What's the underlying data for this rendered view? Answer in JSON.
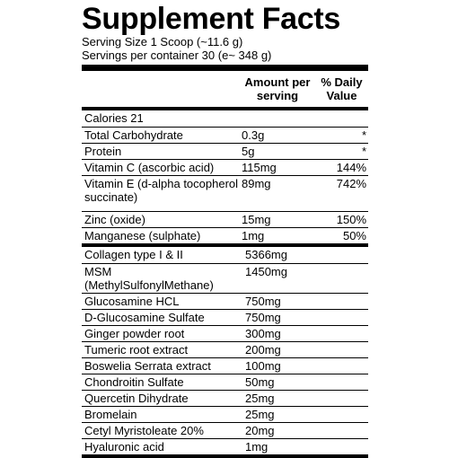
{
  "title": "Supplement Facts",
  "serving_size": "Serving Size 1 Scoop (~11.6 g)",
  "servings_per_container": "Servings per container 30 (e~ 348 g)",
  "headers": {
    "amount": "Amount per serving",
    "daily_value": "% Daily Value"
  },
  "calories": "Calories 21",
  "nutrients": [
    {
      "name": "Total Carbohydrate",
      "amount": "0.3g",
      "dv": "*"
    },
    {
      "name": "Protein",
      "amount": "5g",
      "dv": "*"
    },
    {
      "name": "Vitamin C (ascorbic acid)",
      "amount": "115mg",
      "dv": "144%"
    },
    {
      "name": "Vitamin E (d-alpha tocopherol succinate)",
      "amount": "89mg",
      "dv": "742%"
    },
    {
      "name": "Zinc (oxide)",
      "amount": "15mg",
      "dv": "150%"
    },
    {
      "name": "Manganese (sulphate)",
      "amount": "1mg",
      "dv": "50%"
    }
  ],
  "ingredients": [
    {
      "name": "Collagen type I & II",
      "amount": "5366mg"
    },
    {
      "name": "MSM (MethylSulfonylMethane)",
      "amount": "1450mg"
    },
    {
      "name": "Glucosamine HCL",
      "amount": "750mg"
    },
    {
      "name": "D-Glucosamine Sulfate",
      "amount": "750mg"
    },
    {
      "name": "Ginger powder root",
      "amount": "300mg"
    },
    {
      "name": "Tumeric root extract",
      "amount": "200mg"
    },
    {
      "name": "Boswelia Serrata extract",
      "amount": "100mg"
    },
    {
      "name": "Chondroitin Sulfate",
      "amount": "50mg"
    },
    {
      "name": "Quercetin Dihydrate",
      "amount": "25mg"
    },
    {
      "name": "Bromelain",
      "amount": "25mg"
    },
    {
      "name": "Cetyl Myristoleate 20%",
      "amount": "20mg"
    },
    {
      "name": "Hyaluronic acid",
      "amount": "1mg"
    }
  ]
}
